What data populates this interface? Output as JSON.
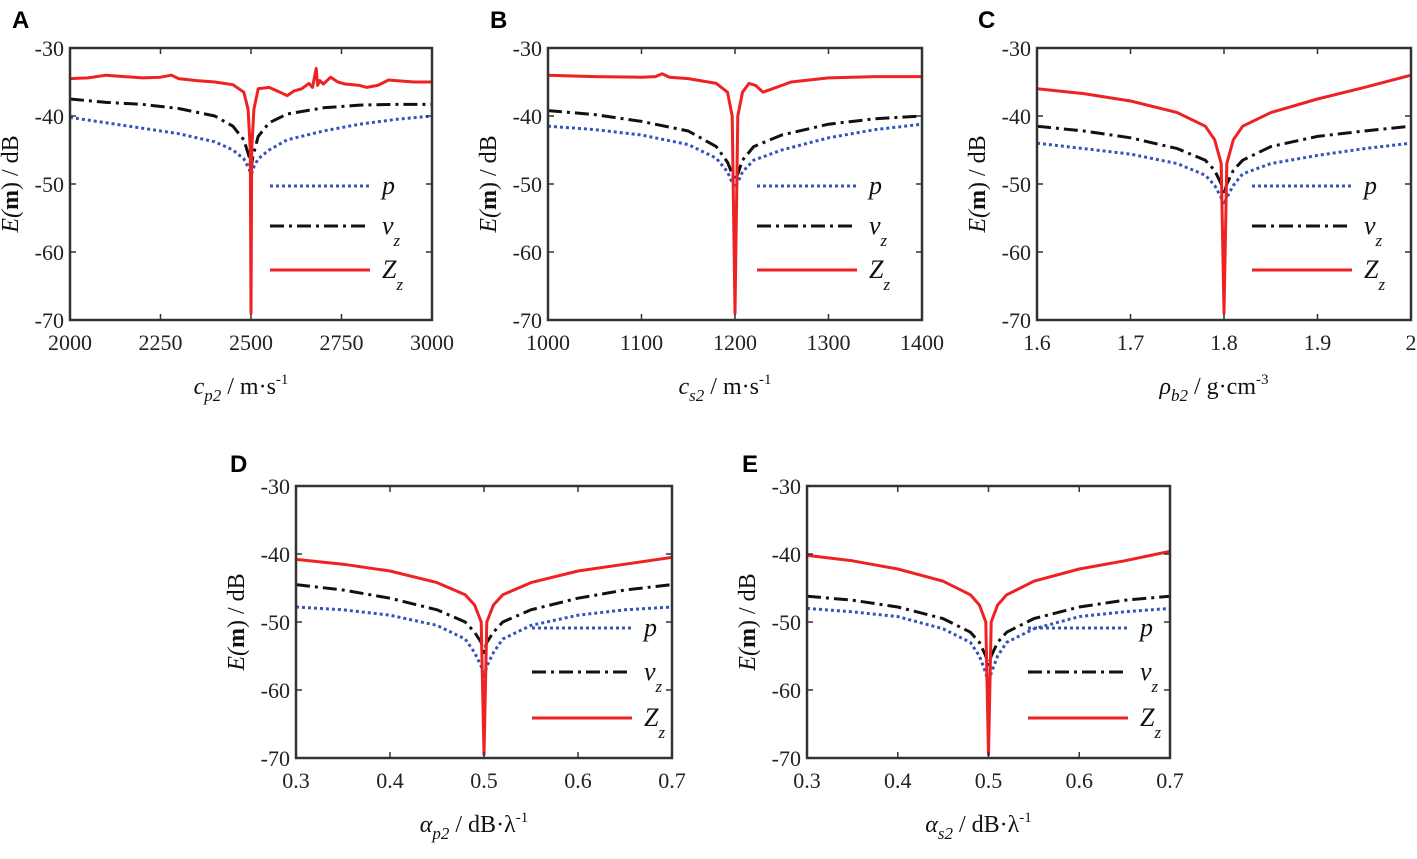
{
  "chart_data": [
    {
      "panel_label": "A",
      "type": "line",
      "xlabel": {
        "base": "c",
        "sub": "p2",
        "rest": " / m·s",
        "sup": "-1"
      },
      "ylabel": {
        "pre": "E(",
        "bold": "m",
        "post": ") / dB"
      },
      "xlim": [
        2000,
        3000
      ],
      "ylim": [
        -70,
        -30
      ],
      "xticks": [
        "2000",
        "2250",
        "2500",
        "2750",
        "3000"
      ],
      "xtick_values": [
        2000,
        2250,
        2500,
        2750,
        3000
      ],
      "yticks": [
        "-30",
        "-40",
        "-50",
        "-60",
        "-70"
      ],
      "ytick_values": [
        -30,
        -40,
        -50,
        -60,
        -70
      ],
      "dip_x": 2500,
      "series": [
        {
          "name": "p",
          "sub": "",
          "color": "#3355bb",
          "style": "dotted",
          "x": [
            2000,
            2100,
            2200,
            2300,
            2400,
            2450,
            2480,
            2495,
            2500,
            2505,
            2520,
            2550,
            2600,
            2700,
            2800,
            2900,
            3000
          ],
          "y": [
            -40.2,
            -41,
            -41.8,
            -42.6,
            -43.8,
            -45,
            -46.3,
            -47.8,
            -49,
            -47.8,
            -46.3,
            -45,
            -43.5,
            -42.2,
            -41.2,
            -40.5,
            -40
          ]
        },
        {
          "name": "v",
          "sub": "z",
          "color": "#111111",
          "style": "dashdot",
          "x": [
            2000,
            2100,
            2200,
            2300,
            2400,
            2450,
            2480,
            2495,
            2500,
            2505,
            2520,
            2550,
            2600,
            2700,
            2800,
            2900,
            3000
          ],
          "y": [
            -37.5,
            -38,
            -38.3,
            -38.9,
            -40,
            -41.5,
            -43.5,
            -46,
            -48,
            -46,
            -43,
            -41,
            -39.7,
            -38.8,
            -38.4,
            -38.3,
            -38.3
          ]
        },
        {
          "name": "Z",
          "sub": "z",
          "color": "#ee2222",
          "style": "solid",
          "x": [
            2000,
            2050,
            2100,
            2150,
            2200,
            2250,
            2280,
            2300,
            2350,
            2400,
            2450,
            2480,
            2492,
            2498,
            2500,
            2502,
            2508,
            2520,
            2550,
            2580,
            2600,
            2620,
            2640,
            2660,
            2670,
            2680,
            2684,
            2690,
            2700,
            2720,
            2740,
            2760,
            2800,
            2820,
            2850,
            2880,
            2900,
            2950,
            3000
          ],
          "y": [
            -34.5,
            -34.4,
            -34,
            -34.2,
            -34.4,
            -34.3,
            -34,
            -34.5,
            -34.8,
            -35,
            -35.4,
            -36.5,
            -39,
            -45,
            -69,
            -45,
            -39,
            -36,
            -35.8,
            -36.5,
            -37,
            -36.3,
            -36,
            -35.2,
            -35.8,
            -33,
            -35.5,
            -34.8,
            -35.3,
            -34.3,
            -35,
            -35.3,
            -35.5,
            -35.8,
            -35.5,
            -34.7,
            -34.8,
            -35,
            -35
          ]
        }
      ]
    },
    {
      "panel_label": "B",
      "type": "line",
      "xlabel": {
        "base": "c",
        "sub": "s2",
        "rest": " / m·s",
        "sup": "-1"
      },
      "ylabel": {
        "pre": "E(",
        "bold": "m",
        "post": ") / dB"
      },
      "xlim": [
        1000,
        1400
      ],
      "ylim": [
        -70,
        -30
      ],
      "xticks": [
        "1000",
        "1100",
        "1200",
        "1300",
        "1400"
      ],
      "xtick_values": [
        1000,
        1100,
        1200,
        1300,
        1400
      ],
      "yticks": [
        "-30",
        "-40",
        "-50",
        "-60",
        "-70"
      ],
      "ytick_values": [
        -30,
        -40,
        -50,
        -60,
        -70
      ],
      "dip_x": 1200,
      "series": [
        {
          "name": "p",
          "sub": "",
          "color": "#3355bb",
          "style": "dotted",
          "x": [
            1000,
            1050,
            1100,
            1150,
            1180,
            1192,
            1197,
            1200,
            1203,
            1208,
            1220,
            1250,
            1300,
            1350,
            1400
          ],
          "y": [
            -41.5,
            -42,
            -42.8,
            -44.2,
            -46.2,
            -48.2,
            -49.8,
            -50.5,
            -49.8,
            -48.2,
            -46.5,
            -45,
            -43.2,
            -42,
            -41.2
          ]
        },
        {
          "name": "v",
          "sub": "z",
          "color": "#111111",
          "style": "dashdot",
          "x": [
            1000,
            1050,
            1100,
            1150,
            1180,
            1192,
            1197,
            1200,
            1203,
            1208,
            1220,
            1250,
            1300,
            1350,
            1400
          ],
          "y": [
            -39.2,
            -39.8,
            -40.8,
            -42.2,
            -44.5,
            -46.8,
            -48.5,
            -49.5,
            -48.5,
            -46.5,
            -44.5,
            -42.8,
            -41.2,
            -40.4,
            -40
          ]
        },
        {
          "name": "Z",
          "sub": "z",
          "color": "#ee2222",
          "style": "solid",
          "x": [
            1000,
            1050,
            1100,
            1115,
            1122,
            1130,
            1150,
            1180,
            1192,
            1197,
            1200,
            1203,
            1208,
            1215,
            1222,
            1230,
            1260,
            1300,
            1350,
            1400
          ],
          "y": [
            -34,
            -34.2,
            -34.3,
            -34.2,
            -33.8,
            -34.3,
            -34.5,
            -35.2,
            -36.5,
            -40,
            -69,
            -40,
            -36.5,
            -35.2,
            -35.5,
            -36.5,
            -35,
            -34.4,
            -34.2,
            -34.2
          ]
        }
      ]
    },
    {
      "panel_label": "C",
      "type": "line",
      "xlabel": {
        "base": "ρ",
        "sub": "b2",
        "rest": " / g·cm",
        "sup": "-3"
      },
      "ylabel": {
        "pre": "E(",
        "bold": "m",
        "post": ") / dB"
      },
      "xlim": [
        1.6,
        2.0
      ],
      "ylim": [
        -70,
        -30
      ],
      "xticks": [
        "1.6",
        "1.7",
        "1.8",
        "1.9",
        "2"
      ],
      "xtick_values": [
        1.6,
        1.7,
        1.8,
        1.9,
        2.0
      ],
      "yticks": [
        "-30",
        "-40",
        "-50",
        "-60",
        "-70"
      ],
      "ytick_values": [
        -30,
        -40,
        -50,
        -60,
        -70
      ],
      "dip_x": 1.8,
      "series": [
        {
          "name": "p",
          "sub": "",
          "color": "#3355bb",
          "style": "dotted",
          "x": [
            1.6,
            1.65,
            1.7,
            1.75,
            1.78,
            1.79,
            1.797,
            1.8,
            1.803,
            1.81,
            1.82,
            1.85,
            1.9,
            1.95,
            2.0
          ],
          "y": [
            -44,
            -44.8,
            -45.6,
            -47,
            -48.7,
            -50.2,
            -52,
            -53,
            -52,
            -50.2,
            -48.5,
            -47,
            -45.8,
            -44.8,
            -44
          ]
        },
        {
          "name": "v",
          "sub": "z",
          "color": "#111111",
          "style": "dashdot",
          "x": [
            1.6,
            1.65,
            1.7,
            1.75,
            1.78,
            1.79,
            1.797,
            1.8,
            1.803,
            1.81,
            1.82,
            1.85,
            1.9,
            1.95,
            2.0
          ],
          "y": [
            -41.5,
            -42.2,
            -43.2,
            -44.8,
            -46.5,
            -48,
            -50,
            -51.5,
            -50,
            -48,
            -46.5,
            -44.5,
            -43,
            -42.2,
            -41.5
          ]
        },
        {
          "name": "Z",
          "sub": "z",
          "color": "#ee2222",
          "style": "solid",
          "x": [
            1.6,
            1.65,
            1.7,
            1.75,
            1.78,
            1.79,
            1.797,
            1.8,
            1.803,
            1.81,
            1.82,
            1.85,
            1.9,
            1.95,
            2.0
          ],
          "y": [
            -36,
            -36.7,
            -37.8,
            -39.5,
            -41.5,
            -43.5,
            -47,
            -69,
            -47,
            -43.5,
            -41.5,
            -39.5,
            -37.5,
            -35.8,
            -34
          ]
        }
      ]
    },
    {
      "panel_label": "D",
      "type": "line",
      "xlabel": {
        "base": "α",
        "sub": "p2",
        "rest": " / dB·λ",
        "sup": "-1"
      },
      "ylabel": {
        "pre": "E(",
        "bold": "m",
        "post": ") / dB"
      },
      "xlim": [
        0.3,
        0.7
      ],
      "ylim": [
        -70,
        -30
      ],
      "xticks": [
        "0.3",
        "0.4",
        "0.5",
        "0.6",
        "0.7"
      ],
      "xtick_values": [
        0.3,
        0.4,
        0.5,
        0.6,
        0.7
      ],
      "yticks": [
        "-30",
        "-40",
        "-50",
        "-60",
        "-70"
      ],
      "ytick_values": [
        -30,
        -40,
        -50,
        -60,
        -70
      ],
      "dip_x": 0.5,
      "series": [
        {
          "name": "p",
          "sub": "",
          "color": "#3355bb",
          "style": "dotted",
          "x": [
            0.3,
            0.35,
            0.4,
            0.45,
            0.48,
            0.49,
            0.497,
            0.5,
            0.503,
            0.51,
            0.52,
            0.55,
            0.6,
            0.65,
            0.7
          ],
          "y": [
            -47.8,
            -48.2,
            -49,
            -50.5,
            -52.5,
            -54.5,
            -56.5,
            -58,
            -56.5,
            -54.5,
            -52.5,
            -50.5,
            -49,
            -48.2,
            -47.8
          ]
        },
        {
          "name": "v",
          "sub": "z",
          "color": "#111111",
          "style": "dashdot",
          "x": [
            0.3,
            0.35,
            0.4,
            0.45,
            0.48,
            0.49,
            0.497,
            0.5,
            0.503,
            0.51,
            0.52,
            0.55,
            0.6,
            0.65,
            0.7
          ],
          "y": [
            -44.5,
            -45.3,
            -46.5,
            -48.2,
            -50,
            -51.5,
            -53,
            -54.5,
            -53,
            -51.5,
            -50,
            -48.2,
            -46.5,
            -45.3,
            -44.5
          ]
        },
        {
          "name": "Z",
          "sub": "z",
          "color": "#ee2222",
          "style": "solid",
          "x": [
            0.3,
            0.35,
            0.4,
            0.45,
            0.48,
            0.49,
            0.497,
            0.5,
            0.503,
            0.51,
            0.52,
            0.55,
            0.6,
            0.65,
            0.7
          ],
          "y": [
            -40.8,
            -41.5,
            -42.5,
            -44.2,
            -46,
            -47.5,
            -50,
            -69.5,
            -50,
            -47.5,
            -46,
            -44.2,
            -42.5,
            -41.5,
            -40.5
          ]
        }
      ]
    },
    {
      "panel_label": "E",
      "type": "line",
      "xlabel": {
        "base": "α",
        "sub": "s2",
        "rest": " / dB·λ",
        "sup": "-1"
      },
      "ylabel": {
        "pre": "E(",
        "bold": "m",
        "post": ") / dB"
      },
      "xlim": [
        0.3,
        0.7
      ],
      "ylim": [
        -70,
        -30
      ],
      "xticks": [
        "0.3",
        "0.4",
        "0.5",
        "0.6",
        "0.7"
      ],
      "xtick_values": [
        0.3,
        0.4,
        0.5,
        0.6,
        0.7
      ],
      "yticks": [
        "-30",
        "-40",
        "-50",
        "-60",
        "-70"
      ],
      "ytick_values": [
        -30,
        -40,
        -50,
        -60,
        -70
      ],
      "dip_x": 0.5,
      "series": [
        {
          "name": "p",
          "sub": "",
          "color": "#3355bb",
          "style": "dotted",
          "x": [
            0.3,
            0.35,
            0.4,
            0.45,
            0.48,
            0.49,
            0.497,
            0.5,
            0.503,
            0.51,
            0.52,
            0.55,
            0.6,
            0.65,
            0.7
          ],
          "y": [
            -48,
            -48.5,
            -49.2,
            -51,
            -53,
            -55,
            -57.5,
            -59,
            -57.5,
            -55,
            -53,
            -51,
            -49.2,
            -48.5,
            -48
          ]
        },
        {
          "name": "v",
          "sub": "z",
          "color": "#111111",
          "style": "dashdot",
          "x": [
            0.3,
            0.35,
            0.4,
            0.45,
            0.48,
            0.49,
            0.497,
            0.5,
            0.503,
            0.51,
            0.52,
            0.55,
            0.6,
            0.65,
            0.7
          ],
          "y": [
            -46.2,
            -46.8,
            -47.8,
            -49.5,
            -51.5,
            -53,
            -55,
            -56.5,
            -55,
            -53,
            -51.5,
            -49.5,
            -47.8,
            -46.8,
            -46.2
          ]
        },
        {
          "name": "Z",
          "sub": "z",
          "color": "#ee2222",
          "style": "solid",
          "x": [
            0.3,
            0.35,
            0.4,
            0.45,
            0.48,
            0.49,
            0.497,
            0.5,
            0.503,
            0.51,
            0.52,
            0.55,
            0.6,
            0.65,
            0.7
          ],
          "y": [
            -40.2,
            -41,
            -42.2,
            -44,
            -46,
            -47.5,
            -50,
            -69.5,
            -50,
            -47.5,
            -46,
            -44,
            -42.2,
            -41,
            -39.6
          ]
        }
      ]
    }
  ]
}
